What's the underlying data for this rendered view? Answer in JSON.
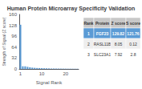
{
  "chart_data": {
    "type": "bar",
    "title": "Human Protein Microarray Specificity Validation",
    "xlabel": "Signal Rank",
    "ylabel": "Strength of Signal (Z score)",
    "categories": [
      "1",
      null,
      null,
      null,
      null,
      null,
      null,
      null,
      null,
      "10",
      null,
      null,
      null,
      null,
      null,
      null,
      null,
      null,
      null,
      "20",
      null,
      null,
      null,
      null,
      null
    ],
    "values": [
      129.82,
      8.05,
      7.92,
      6.5,
      5.2,
      4.1,
      3.5,
      3.0,
      2.8,
      2.5,
      2.2,
      2.0,
      1.8,
      1.6,
      1.5,
      1.4,
      1.3,
      1.2,
      1.1,
      1.0,
      0.9,
      0.85,
      0.8,
      0.75,
      0.7
    ],
    "color": "#5b9bd5",
    "ylim": [
      0,
      160
    ],
    "yticks": [
      0,
      32,
      64,
      96,
      128,
      160
    ],
    "table": {
      "headers": [
        "Rank",
        "Protein",
        "Z score",
        "S score"
      ],
      "rows": [
        [
          "1",
          "FGF23",
          "129.82",
          "121.76"
        ],
        [
          "2",
          "RASL11B",
          "8.05",
          "0.12"
        ],
        [
          "3",
          "SLC23A1",
          "7.92",
          "2.8"
        ]
      ],
      "highlight": [
        true,
        false,
        false
      ],
      "highlight_color": "#5b9bd5"
    }
  }
}
